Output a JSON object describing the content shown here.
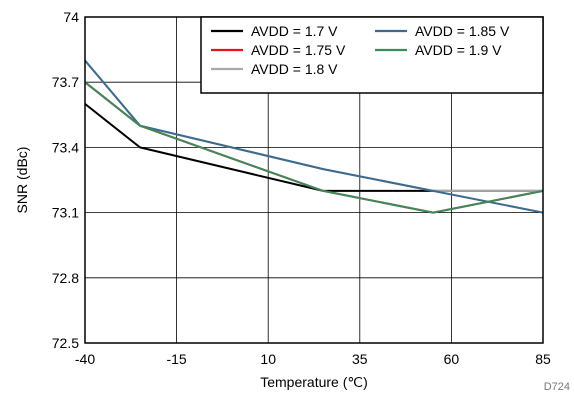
{
  "chart_data": {
    "type": "line",
    "xlabel": "Temperature (℃)",
    "ylabel": "SNR (dBc)",
    "xlim": [
      -40,
      85
    ],
    "ylim": [
      72.5,
      74
    ],
    "x_ticks": [
      -40,
      -15,
      10,
      35,
      60,
      85
    ],
    "y_ticks": [
      72.5,
      72.8,
      73.1,
      73.4,
      73.7,
      74
    ],
    "y_tick_labels": [
      "72.5",
      "72.8",
      "73.1",
      "73.4",
      "73.7",
      "74"
    ],
    "x_tick_labels": [
      "-40",
      "-15",
      "10",
      "35",
      "60",
      "85"
    ],
    "grid": true,
    "legend_position": "top-right",
    "x": [
      -40,
      -25,
      25,
      55,
      85
    ],
    "series": [
      {
        "name": "AVDD = 1.7 V",
        "color": "#000000",
        "values": [
          73.6,
          73.4,
          73.2,
          73.2,
          73.2
        ]
      },
      {
        "name": "AVDD = 1.75 V",
        "color": "#e8141a",
        "values": [
          73.7,
          73.5,
          73.2,
          73.1,
          73.2
        ]
      },
      {
        "name": "AVDD = 1.8 V",
        "color": "#a9a9a9",
        "values": [
          73.8,
          73.5,
          73.3,
          73.2,
          73.2
        ]
      },
      {
        "name": "AVDD = 1.85 V",
        "color": "#3b6b8f",
        "values": [
          73.8,
          73.5,
          73.3,
          73.2,
          73.1
        ]
      },
      {
        "name": "AVDD = 1.9 V",
        "color": "#3d8a5c",
        "values": [
          73.7,
          73.5,
          73.2,
          73.1,
          73.2
        ]
      }
    ],
    "watermark": "D724"
  }
}
